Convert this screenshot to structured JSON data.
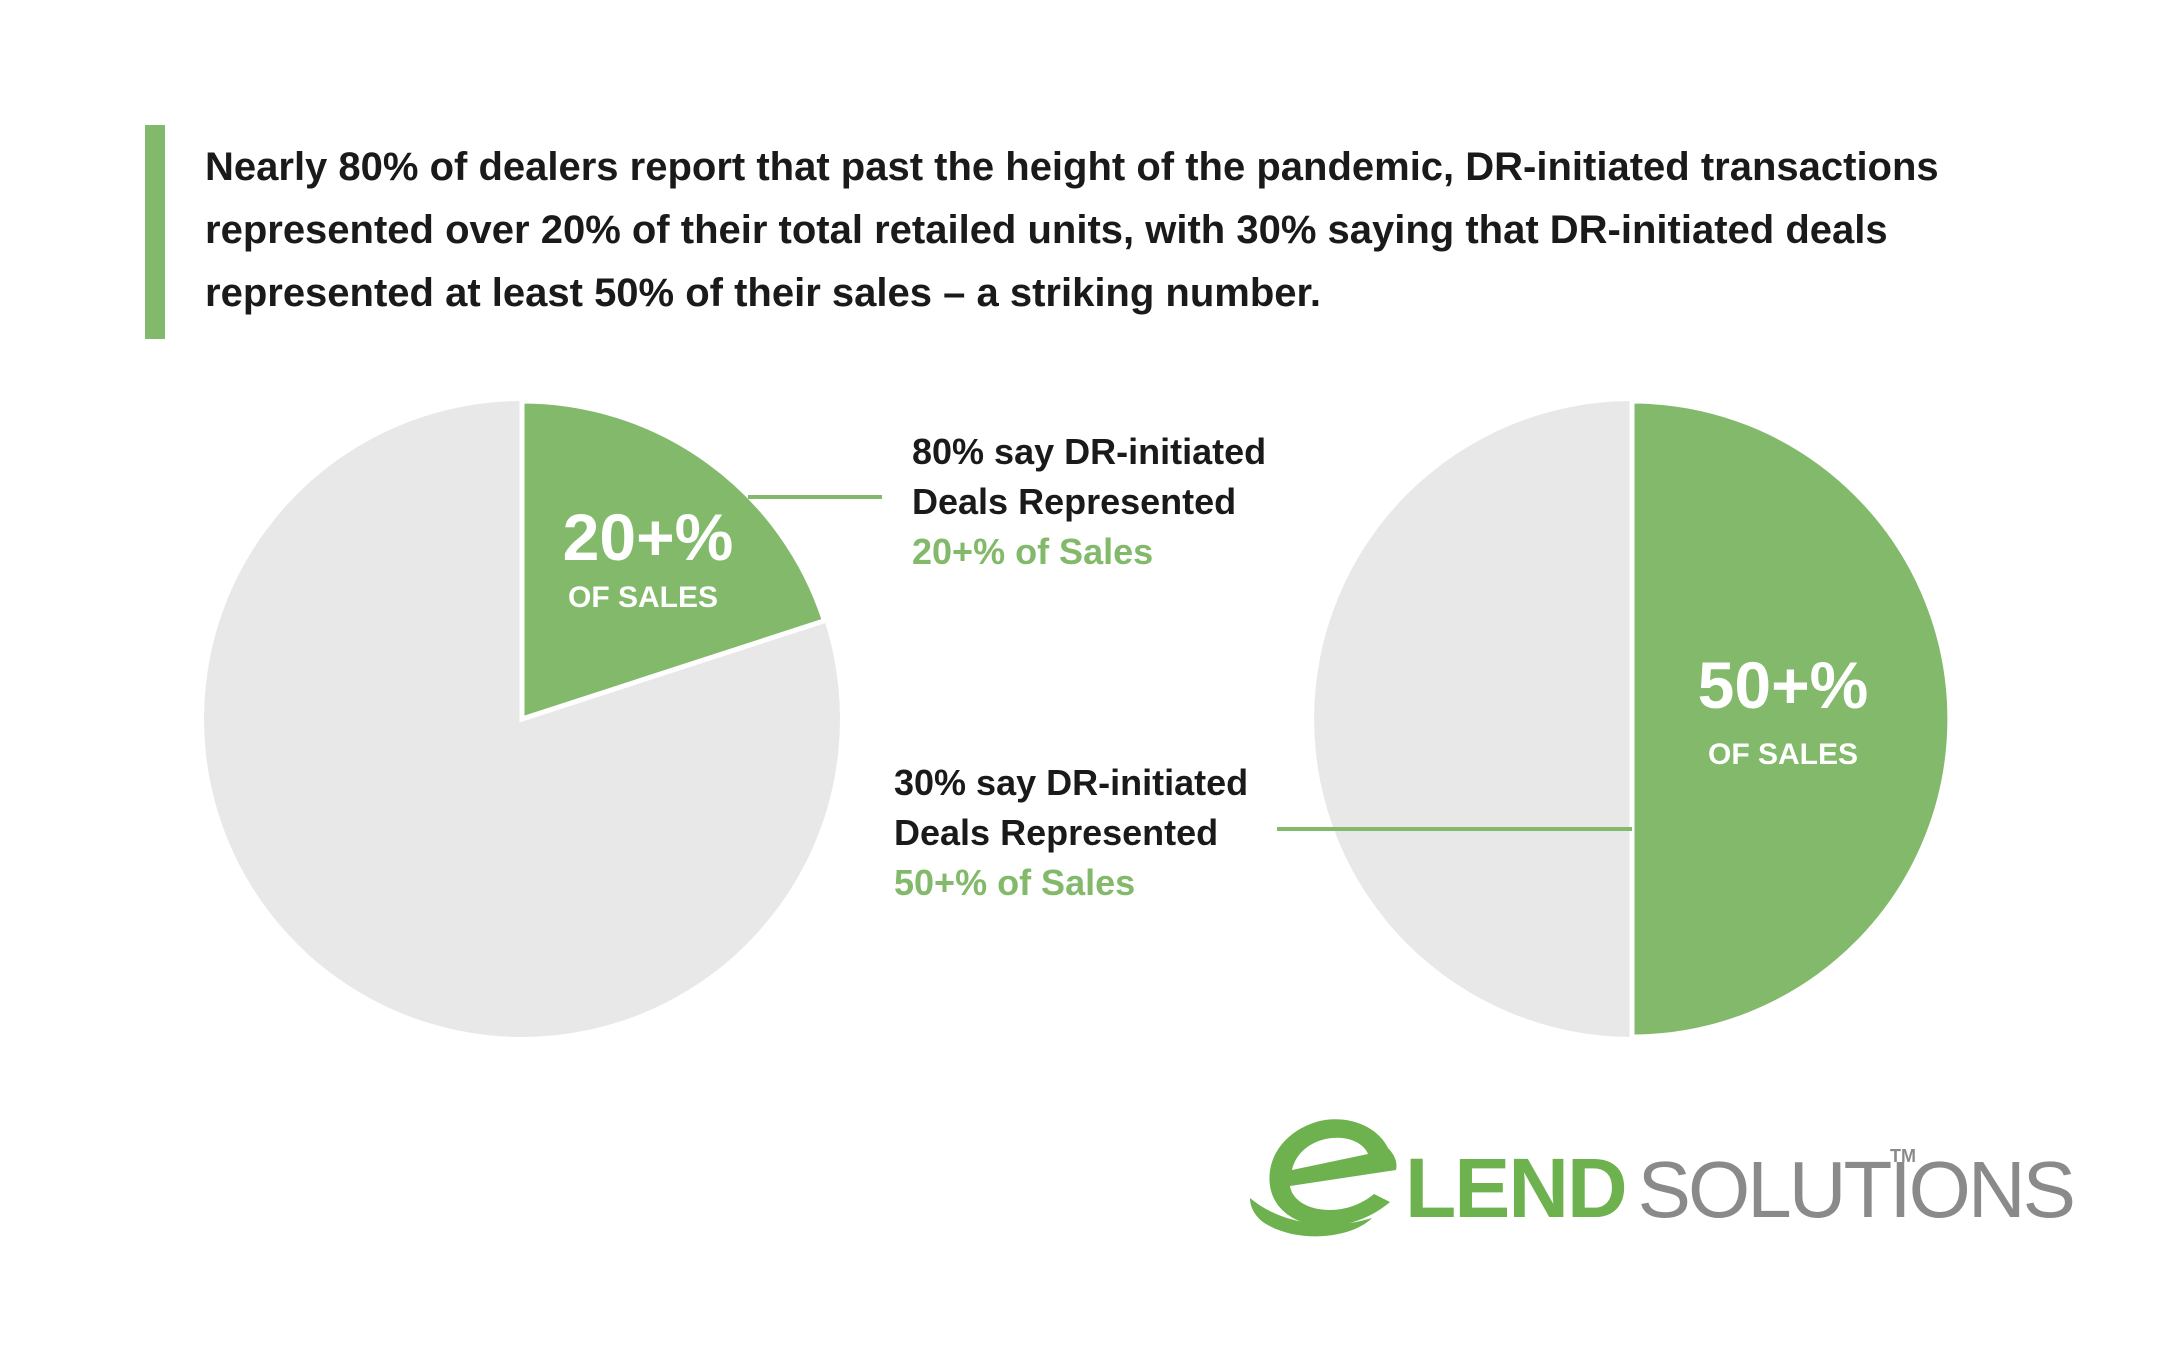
{
  "headline": "Nearly 80% of dealers report that past the height of the pandemic, DR-initiated transactions represented over 20% of their total retailed units, with 30% saying that DR-initiated deals represented at least 50% of their sales – a striking number.",
  "colors": {
    "accent_green": "#82b96a",
    "slice_gray": "#e8e8e8",
    "text_dark": "#1a1a1a",
    "logo_green": "#6db24f",
    "logo_gray": "#8a8a8a"
  },
  "chart_data": [
    {
      "type": "pie",
      "slices": [
        {
          "label": "20+% OF SALES",
          "value": 20,
          "color": "#82b96a"
        },
        {
          "label": "",
          "value": 80,
          "color": "#e8e8e8"
        }
      ],
      "slice_big_text": "20+%",
      "slice_small_text": "OF SALES",
      "callout": {
        "line1": "80% say DR-initiated",
        "line2": "Deals Represented",
        "line3": "20+% of Sales"
      }
    },
    {
      "type": "pie",
      "slices": [
        {
          "label": "50+% OF SALES",
          "value": 50,
          "color": "#82b96a"
        },
        {
          "label": "",
          "value": 50,
          "color": "#e8e8e8"
        }
      ],
      "slice_big_text": "50+%",
      "slice_small_text": "OF SALES",
      "callout": {
        "line1": "30% say DR-initiated",
        "line2": "Deals Represented",
        "line3": "50+% of Sales"
      }
    }
  ],
  "logo": {
    "brand_main": "LEND",
    "brand_secondary": "SOLUTIONS",
    "trademark": "TM",
    "icon": "e-swoosh-logo-icon"
  }
}
